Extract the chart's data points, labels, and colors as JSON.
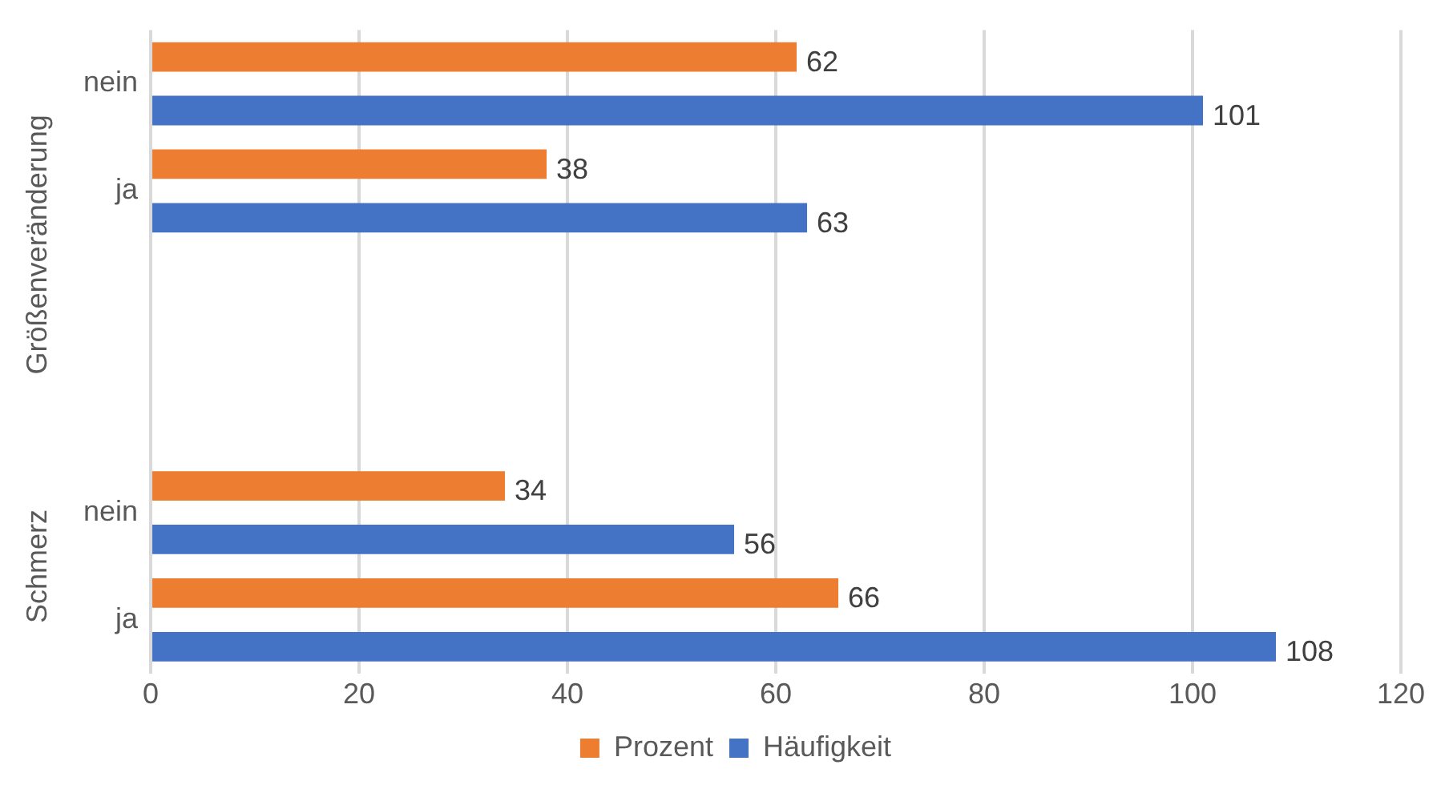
{
  "chart_data": {
    "type": "bar",
    "orientation": "horizontal",
    "categories": [
      "nein",
      "ja",
      null,
      null,
      "nein",
      "ja"
    ],
    "series": [
      {
        "name": "Prozent",
        "color": "#ed7d31",
        "values": [
          62,
          38,
          null,
          null,
          34,
          66
        ]
      },
      {
        "name": "Häufigkeit",
        "color": "#4472c4",
        "values": [
          101,
          63,
          null,
          null,
          56,
          108
        ]
      }
    ],
    "annotations": [
      "Größenveränderung",
      "Schmerz"
    ],
    "xlim": [
      0,
      120
    ],
    "xticks": [
      0,
      20,
      40,
      60,
      80,
      100,
      120
    ],
    "grid": "x",
    "legend": "bottom",
    "data_labels": true
  }
}
